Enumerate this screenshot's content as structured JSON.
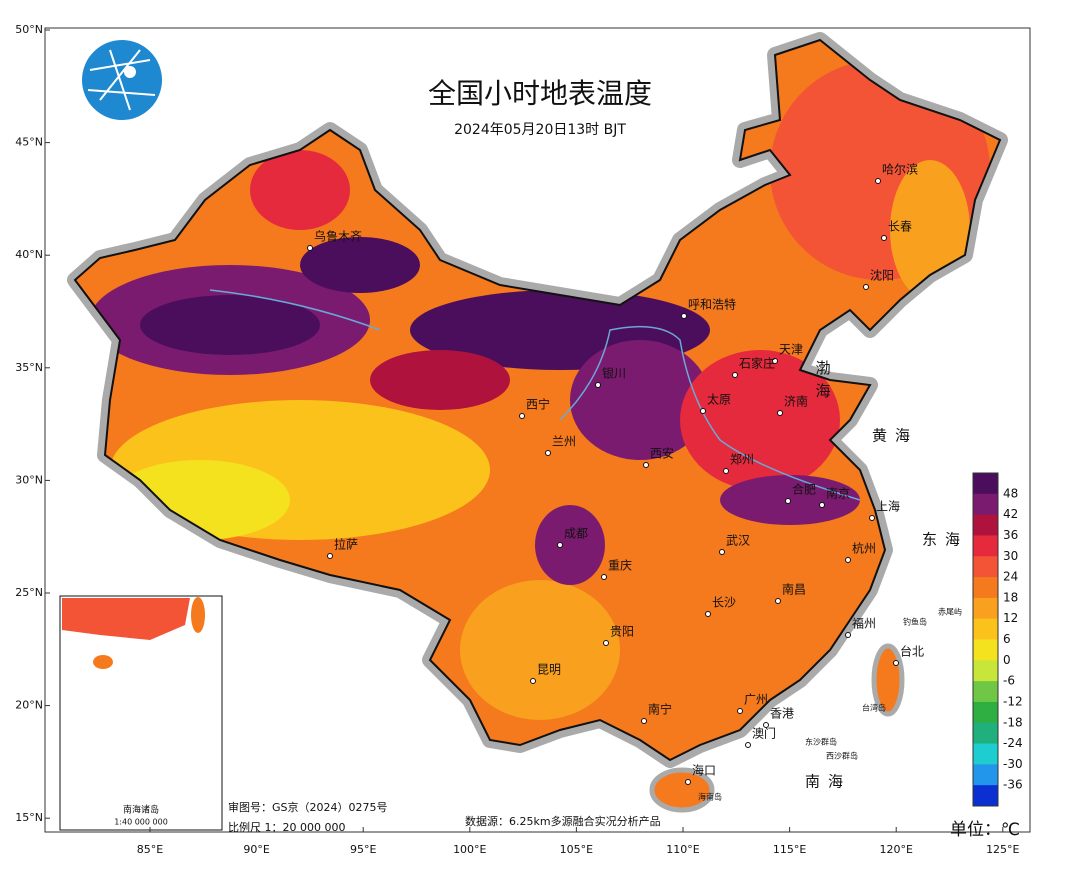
{
  "header": {
    "title": "全国小时地表温度",
    "subtitle": "2024年05月20日13时 BJT"
  },
  "axes": {
    "lat_labels": [
      "50°N",
      "45°N",
      "40°N",
      "35°N",
      "30°N",
      "25°N",
      "20°N",
      "15°N"
    ],
    "lon_labels": [
      "85°E",
      "90°E",
      "95°E",
      "100°E",
      "105°E",
      "110°E",
      "115°E",
      "120°E",
      "125°E"
    ]
  },
  "legend": {
    "colors": [
      "#4a0e5c",
      "#7b1b6f",
      "#b0123e",
      "#e42a3c",
      "#f35436",
      "#f5791d",
      "#f9a01f",
      "#fbc21c",
      "#f4e21f",
      "#c8e63a",
      "#6fc745",
      "#2fae42",
      "#1fb07e",
      "#1ecdd0",
      "#2196ea",
      "#0b2fd0"
    ],
    "labels": [
      48,
      42,
      36,
      30,
      24,
      18,
      12,
      6,
      0,
      -6,
      -12,
      -18,
      -24,
      -30,
      -36
    ],
    "unit": "单位：℃"
  },
  "cities": [
    "乌鲁木齐",
    "呼和浩特",
    "哈尔滨",
    "长春",
    "沈阳",
    "天津",
    "石家庄",
    "太原",
    "济南",
    "银川",
    "西宁",
    "兰州",
    "西安",
    "郑州",
    "合肥",
    "南京",
    "上海",
    "杭州",
    "武汉",
    "成都",
    "重庆",
    "拉萨",
    "长沙",
    "南昌",
    "贵阳",
    "福州",
    "台北",
    "昆明",
    "南宁",
    "广州",
    "香港",
    "澳门",
    "海口"
  ],
  "seas": [
    "渤海",
    "黄海",
    "东海",
    "南海"
  ],
  "islands": [
    "钓鱼岛",
    "赤尾屿",
    "台湾岛",
    "东沙群岛",
    "西沙群岛",
    "海南岛"
  ],
  "inset": {
    "title": "南海诸岛",
    "scale": "1:40 000 000"
  },
  "footer": {
    "approval": "审图号：GS京（2024）0275号",
    "scale": "比例尺 1：20 000 000",
    "source": "数据源：6.25km多源融合实况分析产品"
  }
}
